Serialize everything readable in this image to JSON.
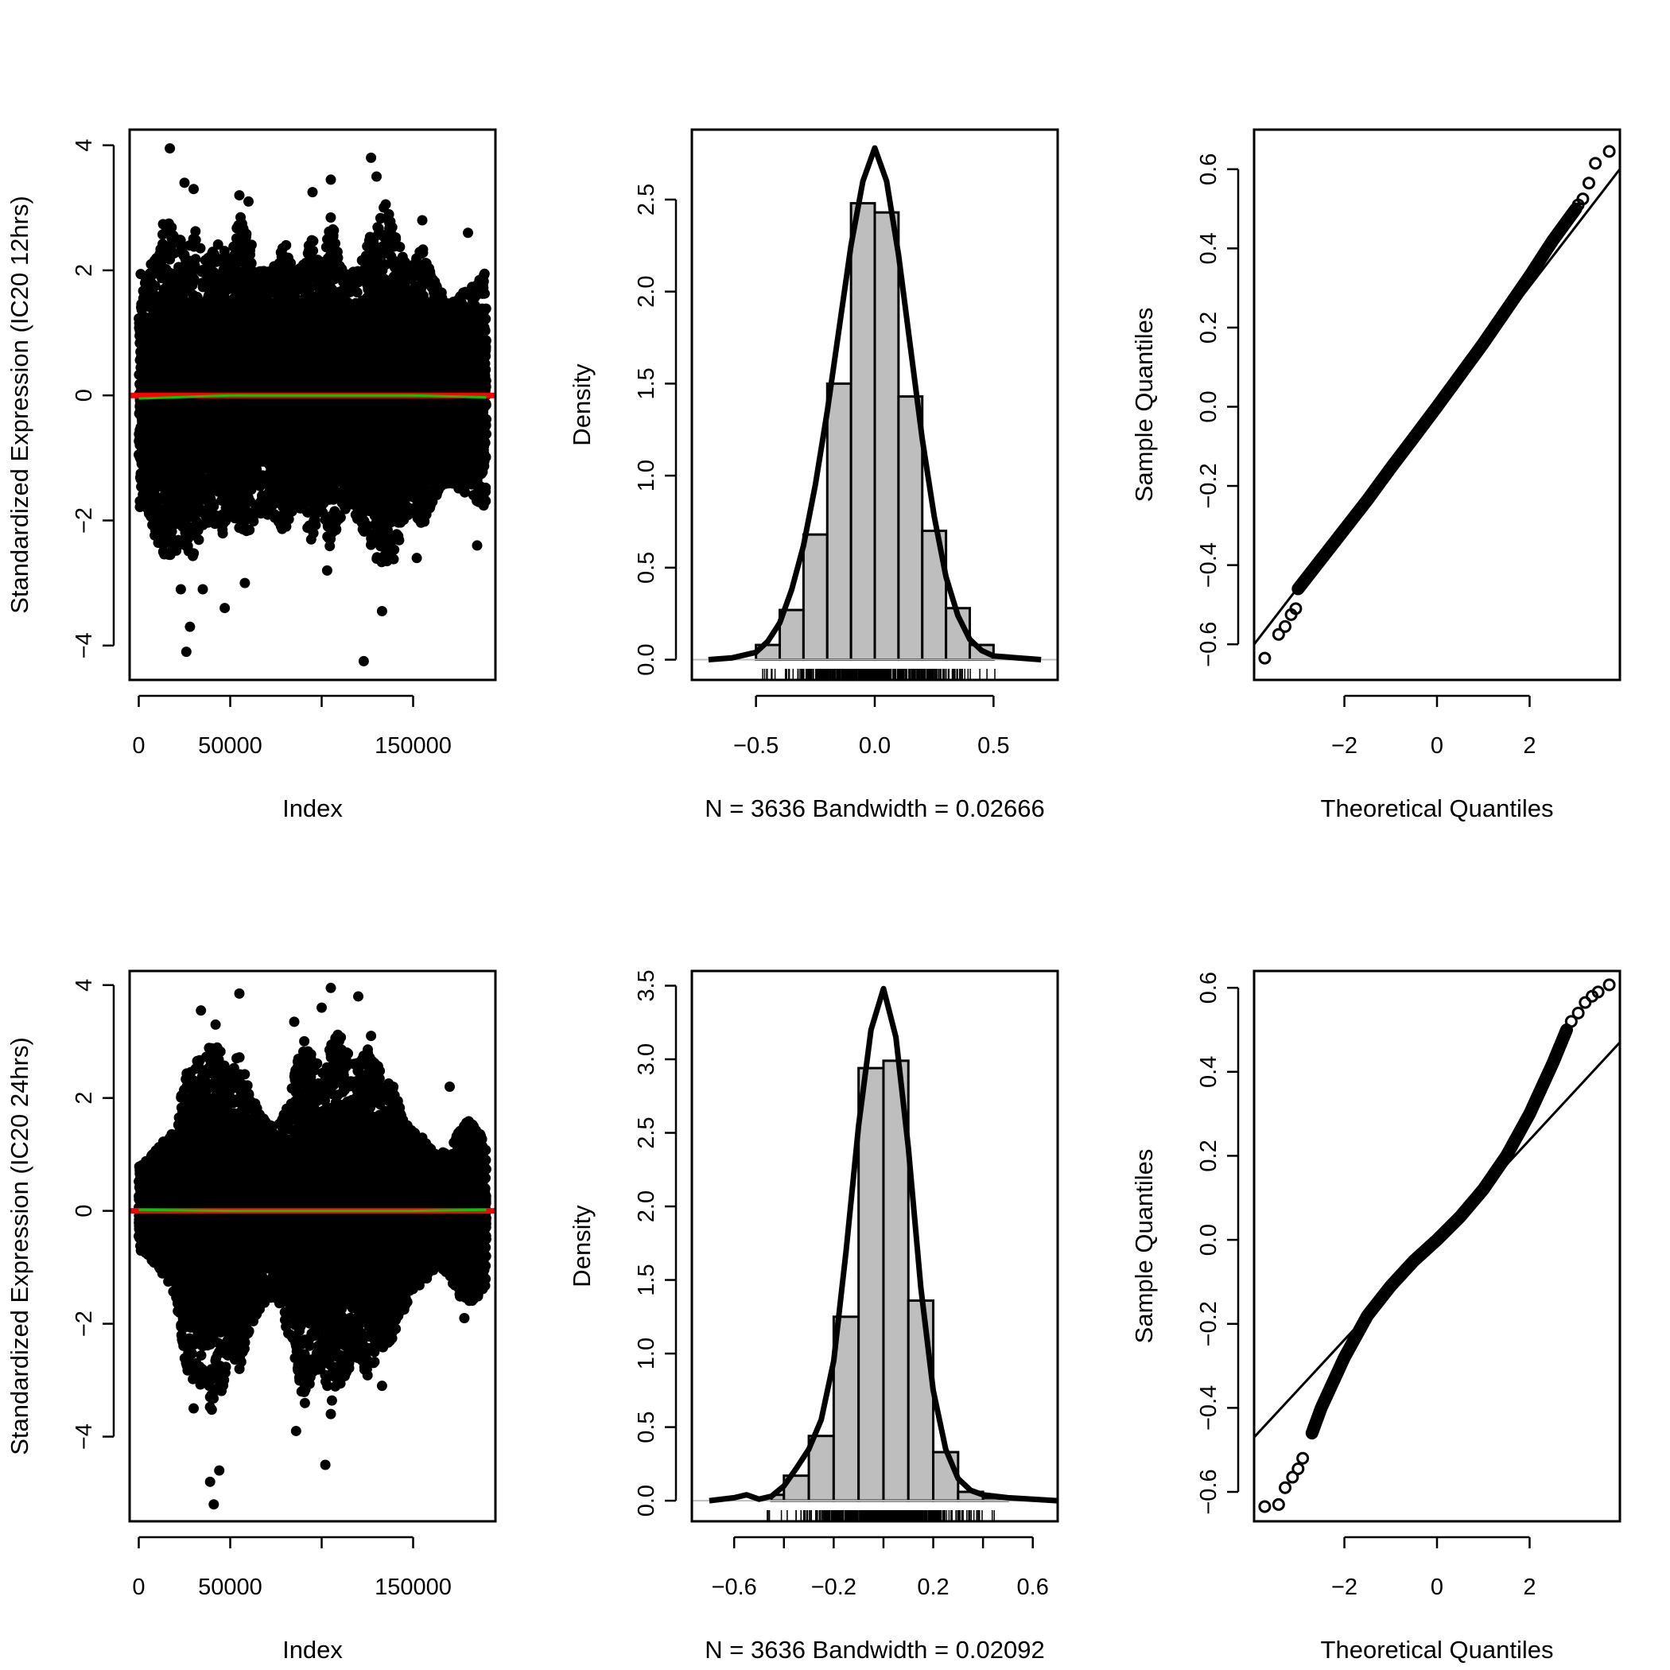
{
  "chart_data": [
    {
      "type": "scatter",
      "panel": "index-plot-12hrs",
      "title": "",
      "xlabel": "Index",
      "ylabel": "Standardized Expression (IC20 12hrs)",
      "xlim": [
        -5000,
        195000
      ],
      "ylim": [
        -4.55,
        4.25
      ],
      "x_ticks": [
        {
          "value": 0,
          "label": "0"
        },
        {
          "value": 50000,
          "label": "50000"
        },
        {
          "value": 100000,
          "label": ""
        },
        {
          "value": 150000,
          "label": "150000"
        }
      ],
      "y_ticks": [
        {
          "value": -4,
          "label": "−4"
        },
        {
          "value": -2,
          "label": "−2"
        },
        {
          "value": 0,
          "label": "0"
        },
        {
          "value": 2,
          "label": "2"
        },
        {
          "value": 4,
          "label": "4"
        }
      ],
      "n_points": 190000,
      "point_color": "#000000",
      "envelope": {
        "x": [
          0,
          5000,
          10000,
          15000,
          20000,
          25000,
          30000,
          35000,
          40000,
          45000,
          50000,
          55000,
          60000,
          65000,
          70000,
          75000,
          80000,
          85000,
          90000,
          95000,
          100000,
          105000,
          110000,
          115000,
          120000,
          125000,
          130000,
          135000,
          140000,
          145000,
          150000,
          155000,
          160000,
          165000,
          170000,
          175000,
          180000,
          185000,
          190000
        ],
        "upper": [
          2.0,
          1.9,
          2.5,
          2.9,
          2.6,
          2.4,
          2.8,
          2.2,
          2.3,
          2.6,
          2.1,
          2.9,
          2.7,
          2.0,
          2.0,
          2.1,
          2.5,
          2.0,
          2.1,
          2.6,
          2.0,
          2.9,
          2.2,
          2.0,
          2.1,
          2.4,
          2.9,
          3.1,
          2.6,
          2.2,
          2.1,
          2.4,
          2.0,
          1.7,
          1.5,
          1.6,
          1.7,
          1.8,
          2.0
        ],
        "lower": [
          -1.8,
          -1.9,
          -2.4,
          -2.6,
          -2.5,
          -2.4,
          -2.6,
          -2.1,
          -2.0,
          -2.3,
          -1.9,
          -2.2,
          -2.2,
          -1.9,
          -1.9,
          -2.0,
          -2.2,
          -1.8,
          -1.9,
          -2.4,
          -1.8,
          -2.6,
          -2.0,
          -1.8,
          -2.0,
          -2.3,
          -2.7,
          -2.8,
          -2.6,
          -2.0,
          -1.9,
          -2.1,
          -1.8,
          -1.5,
          -1.4,
          -1.5,
          -1.6,
          -1.7,
          -1.8
        ]
      },
      "outliers": [
        {
          "x": 17000,
          "y": 3.95
        },
        {
          "x": 25000,
          "y": 3.4
        },
        {
          "x": 30000,
          "y": 3.3
        },
        {
          "x": 55000,
          "y": 3.2
        },
        {
          "x": 60000,
          "y": 3.1
        },
        {
          "x": 95000,
          "y": 3.25
        },
        {
          "x": 105000,
          "y": 3.45
        },
        {
          "x": 127000,
          "y": 3.8
        },
        {
          "x": 130000,
          "y": 3.5
        },
        {
          "x": 155000,
          "y": 2.8
        },
        {
          "x": 180000,
          "y": 2.6
        },
        {
          "x": 26000,
          "y": -4.1
        },
        {
          "x": 28000,
          "y": -3.7
        },
        {
          "x": 23000,
          "y": -3.1
        },
        {
          "x": 35000,
          "y": -3.1
        },
        {
          "x": 47000,
          "y": -3.4
        },
        {
          "x": 58000,
          "y": -3.0
        },
        {
          "x": 103000,
          "y": -2.8
        },
        {
          "x": 123000,
          "y": -4.25
        },
        {
          "x": 133000,
          "y": -3.45
        },
        {
          "x": 152000,
          "y": -2.6
        },
        {
          "x": 185000,
          "y": -2.4
        }
      ],
      "reference_line": {
        "y": 0,
        "color": "#ff0000"
      },
      "smooth_line": {
        "color": "#00cc00",
        "x": [
          0,
          50000,
          100000,
          150000,
          190000
        ],
        "y": [
          -0.05,
          0.0,
          0.0,
          0.0,
          -0.03
        ]
      }
    },
    {
      "type": "histogram",
      "panel": "density-plot-12hrs",
      "title": "",
      "xlabel": "N = 3636   Bandwidth = 0.02666",
      "ylabel": "Density",
      "xlim": [
        -0.77,
        0.77
      ],
      "ylim": [
        -0.11,
        2.88
      ],
      "x_ticks": [
        {
          "value": -0.5,
          "label": "−0.5"
        },
        {
          "value": 0,
          "label": "0.0"
        },
        {
          "value": 0.5,
          "label": "0.5"
        }
      ],
      "y_ticks": [
        {
          "value": 0,
          "label": "0.0"
        },
        {
          "value": 0.5,
          "label": "0.5"
        },
        {
          "value": 1.0,
          "label": "1.0"
        },
        {
          "value": 1.5,
          "label": "1.5"
        },
        {
          "value": 2.0,
          "label": "2.0"
        },
        {
          "value": 2.5,
          "label": "2.5"
        }
      ],
      "bin_edges": [
        -0.5,
        -0.4,
        -0.3,
        -0.2,
        -0.1,
        0.0,
        0.1,
        0.2,
        0.3,
        0.4,
        0.5
      ],
      "values": [
        0.08,
        0.27,
        0.68,
        1.5,
        2.48,
        2.43,
        1.43,
        0.7,
        0.28,
        0.08
      ],
      "bar_color": "#bebebe",
      "density_curve": {
        "x": [
          -0.7,
          -0.6,
          -0.5,
          -0.45,
          -0.4,
          -0.35,
          -0.3,
          -0.25,
          -0.2,
          -0.15,
          -0.1,
          -0.05,
          0.0,
          0.05,
          0.1,
          0.15,
          0.2,
          0.25,
          0.3,
          0.35,
          0.4,
          0.45,
          0.5,
          0.6,
          0.7
        ],
        "y": [
          0.0,
          0.01,
          0.04,
          0.1,
          0.2,
          0.38,
          0.62,
          0.95,
          1.35,
          1.8,
          2.25,
          2.6,
          2.78,
          2.6,
          2.2,
          1.7,
          1.2,
          0.78,
          0.45,
          0.24,
          0.11,
          0.05,
          0.02,
          0.01,
          0.0
        ]
      },
      "rug_range": [
        -0.62,
        0.6
      ]
    },
    {
      "type": "scatter",
      "panel": "qq-plot-12hrs",
      "title": "",
      "xlabel": "Theoretical Quantiles",
      "ylabel": "Sample Quantiles",
      "xlim": [
        -3.95,
        3.95
      ],
      "ylim": [
        -0.69,
        0.7
      ],
      "x_ticks": [
        {
          "value": -2,
          "label": "−2"
        },
        {
          "value": 0,
          "label": "0"
        },
        {
          "value": 2,
          "label": "2"
        }
      ],
      "y_ticks": [
        {
          "value": -0.6,
          "label": "−0.6"
        },
        {
          "value": -0.4,
          "label": "−0.4"
        },
        {
          "value": -0.2,
          "label": "−0.2"
        },
        {
          "value": 0,
          "label": "0.0"
        },
        {
          "value": 0.2,
          "label": "0.2"
        },
        {
          "value": 0.4,
          "label": "0.4"
        },
        {
          "value": 0.6,
          "label": "0.6"
        }
      ],
      "qq_line": {
        "slope": 0.152,
        "intercept": 0.0
      },
      "qq_curve": {
        "x": [
          -3.0,
          -2.5,
          -2.0,
          -1.5,
          -1.0,
          -0.5,
          0.0,
          0.5,
          1.0,
          1.5,
          2.0,
          2.5,
          3.0
        ],
        "y": [
          -0.46,
          -0.385,
          -0.31,
          -0.235,
          -0.155,
          -0.078,
          0.0,
          0.08,
          0.16,
          0.245,
          0.33,
          0.42,
          0.5
        ]
      },
      "qq_extremes": [
        {
          "x": -3.72,
          "y": -0.635
        },
        {
          "x": -3.42,
          "y": -0.575
        },
        {
          "x": -3.28,
          "y": -0.555
        },
        {
          "x": -3.15,
          "y": -0.525
        },
        {
          "x": -3.05,
          "y": -0.51
        },
        {
          "x": 3.05,
          "y": 0.51
        },
        {
          "x": 3.15,
          "y": 0.525
        },
        {
          "x": 3.28,
          "y": 0.565
        },
        {
          "x": 3.42,
          "y": 0.615
        },
        {
          "x": 3.72,
          "y": 0.645
        }
      ]
    },
    {
      "type": "scatter",
      "panel": "index-plot-24hrs",
      "title": "",
      "xlabel": "Index",
      "ylabel": "Standardized Expression (IC20 24hrs)",
      "xlim": [
        -5000,
        195000
      ],
      "ylim": [
        -5.5,
        4.25
      ],
      "x_ticks": [
        {
          "value": 0,
          "label": "0"
        },
        {
          "value": 50000,
          "label": "50000"
        },
        {
          "value": 100000,
          "label": ""
        },
        {
          "value": 150000,
          "label": "150000"
        }
      ],
      "y_ticks": [
        {
          "value": -4,
          "label": "−4"
        },
        {
          "value": -2,
          "label": "−2"
        },
        {
          "value": 0,
          "label": "0"
        },
        {
          "value": 2,
          "label": "2"
        },
        {
          "value": 4,
          "label": "4"
        }
      ],
      "n_points": 190000,
      "point_color": "#000000",
      "envelope": {
        "x": [
          0,
          5000,
          10000,
          15000,
          20000,
          25000,
          30000,
          35000,
          40000,
          45000,
          50000,
          55000,
          60000,
          65000,
          70000,
          75000,
          80000,
          85000,
          90000,
          95000,
          100000,
          105000,
          110000,
          115000,
          120000,
          125000,
          130000,
          135000,
          140000,
          145000,
          150000,
          155000,
          160000,
          165000,
          170000,
          175000,
          180000,
          185000,
          190000
        ],
        "upper": [
          0.9,
          0.9,
          1.1,
          1.3,
          1.4,
          2.4,
          2.6,
          2.8,
          3.0,
          2.9,
          2.4,
          2.9,
          2.2,
          1.8,
          1.6,
          1.5,
          1.8,
          2.4,
          3.1,
          2.8,
          2.5,
          3.0,
          3.2,
          2.8,
          2.6,
          3.0,
          2.6,
          2.4,
          2.2,
          1.6,
          1.4,
          1.3,
          1.1,
          1.0,
          1.2,
          1.4,
          1.6,
          1.5,
          1.2
        ],
        "lower": [
          -0.7,
          -0.8,
          -1.0,
          -1.2,
          -1.5,
          -2.8,
          -3.0,
          -3.2,
          -3.6,
          -3.4,
          -2.5,
          -2.9,
          -2.2,
          -1.8,
          -1.6,
          -1.6,
          -2.0,
          -2.6,
          -3.6,
          -3.0,
          -2.8,
          -3.4,
          -3.2,
          -2.8,
          -2.6,
          -3.0,
          -2.6,
          -2.4,
          -2.2,
          -1.8,
          -1.4,
          -1.3,
          -1.1,
          -1.0,
          -1.2,
          -1.5,
          -1.7,
          -1.6,
          -1.3
        ]
      },
      "outliers": [
        {
          "x": 34000,
          "y": 3.55
        },
        {
          "x": 42000,
          "y": 3.3
        },
        {
          "x": 55000,
          "y": 3.85
        },
        {
          "x": 85000,
          "y": 3.35
        },
        {
          "x": 100000,
          "y": 3.6
        },
        {
          "x": 105000,
          "y": 3.95
        },
        {
          "x": 120000,
          "y": 3.8
        },
        {
          "x": 127000,
          "y": 3.1
        },
        {
          "x": 170000,
          "y": 2.2
        },
        {
          "x": 39000,
          "y": -4.8
        },
        {
          "x": 41000,
          "y": -5.2
        },
        {
          "x": 44000,
          "y": -4.6
        },
        {
          "x": 30000,
          "y": -3.5
        },
        {
          "x": 86000,
          "y": -3.9
        },
        {
          "x": 102000,
          "y": -4.5
        },
        {
          "x": 105000,
          "y": -3.6
        },
        {
          "x": 133000,
          "y": -3.1
        },
        {
          "x": 178000,
          "y": -1.9
        }
      ],
      "reference_line": {
        "y": 0,
        "color": "#ff0000"
      },
      "smooth_line": {
        "color": "#00cc00",
        "x": [
          0,
          50000,
          100000,
          150000,
          190000
        ],
        "y": [
          0.02,
          0.0,
          0.0,
          0.0,
          0.02
        ]
      }
    },
    {
      "type": "histogram",
      "panel": "density-plot-24hrs",
      "title": "",
      "xlabel": "N = 3636   Bandwidth = 0.02092",
      "ylabel": "Density",
      "xlim": [
        -0.77,
        0.7
      ],
      "ylim": [
        -0.14,
        3.6
      ],
      "x_ticks": [
        {
          "value": -0.6,
          "label": "−0.6"
        },
        {
          "value": -0.4,
          "label": ""
        },
        {
          "value": -0.2,
          "label": "−0.2"
        },
        {
          "value": 0,
          "label": ""
        },
        {
          "value": 0.2,
          "label": "0.2"
        },
        {
          "value": 0.4,
          "label": ""
        },
        {
          "value": 0.6,
          "label": "0.6"
        }
      ],
      "y_ticks": [
        {
          "value": 0,
          "label": "0.0"
        },
        {
          "value": 0.5,
          "label": "0.5"
        },
        {
          "value": 1.0,
          "label": "1.0"
        },
        {
          "value": 1.5,
          "label": "1.5"
        },
        {
          "value": 2.0,
          "label": "2.0"
        },
        {
          "value": 2.5,
          "label": "2.5"
        },
        {
          "value": 3.0,
          "label": "3.0"
        },
        {
          "value": 3.5,
          "label": "3.5"
        }
      ],
      "bin_edges": [
        -0.45,
        -0.4,
        -0.3,
        -0.2,
        -0.1,
        0.0,
        0.1,
        0.2,
        0.3,
        0.4,
        0.5
      ],
      "values": [
        0.04,
        0.17,
        0.44,
        1.25,
        2.94,
        2.99,
        1.36,
        0.33,
        0.06,
        0.02
      ],
      "bar_color": "#bebebe",
      "density_curve": {
        "x": [
          -0.7,
          -0.6,
          -0.55,
          -0.5,
          -0.45,
          -0.4,
          -0.35,
          -0.3,
          -0.25,
          -0.2,
          -0.15,
          -0.1,
          -0.05,
          0.0,
          0.05,
          0.1,
          0.15,
          0.2,
          0.25,
          0.3,
          0.35,
          0.4,
          0.5,
          0.6,
          0.7
        ],
        "y": [
          0.0,
          0.02,
          0.04,
          0.01,
          0.03,
          0.1,
          0.22,
          0.35,
          0.55,
          0.95,
          1.7,
          2.55,
          3.2,
          3.48,
          3.15,
          2.4,
          1.45,
          0.75,
          0.35,
          0.15,
          0.07,
          0.04,
          0.02,
          0.01,
          0.0
        ]
      },
      "rug_range": [
        -0.65,
        0.6
      ]
    },
    {
      "type": "scatter",
      "panel": "qq-plot-24hrs",
      "title": "",
      "xlabel": "Theoretical Quantiles",
      "ylabel": "Sample Quantiles",
      "xlim": [
        -3.95,
        3.95
      ],
      "ylim": [
        -0.67,
        0.64
      ],
      "x_ticks": [
        {
          "value": -2,
          "label": "−2"
        },
        {
          "value": 0,
          "label": "0"
        },
        {
          "value": 2,
          "label": "2"
        }
      ],
      "y_ticks": [
        {
          "value": -0.6,
          "label": "−0.6"
        },
        {
          "value": -0.4,
          "label": "−0.4"
        },
        {
          "value": -0.2,
          "label": "−0.2"
        },
        {
          "value": 0,
          "label": "0.0"
        },
        {
          "value": 0.2,
          "label": "0.2"
        },
        {
          "value": 0.4,
          "label": "0.4"
        },
        {
          "value": 0.6,
          "label": "0.6"
        }
      ],
      "qq_line": {
        "slope": 0.119,
        "intercept": 0.0
      },
      "qq_curve": {
        "x": [
          -2.7,
          -2.5,
          -2.0,
          -1.5,
          -1.0,
          -0.5,
          0.0,
          0.5,
          1.0,
          1.5,
          2.0,
          2.5,
          2.8
        ],
        "y": [
          -0.46,
          -0.4,
          -0.28,
          -0.18,
          -0.11,
          -0.05,
          0.0,
          0.055,
          0.12,
          0.2,
          0.3,
          0.42,
          0.5
        ]
      },
      "qq_extremes": [
        {
          "x": -3.72,
          "y": -0.635
        },
        {
          "x": -3.42,
          "y": -0.63
        },
        {
          "x": -3.28,
          "y": -0.59
        },
        {
          "x": -3.12,
          "y": -0.565
        },
        {
          "x": -3.0,
          "y": -0.545
        },
        {
          "x": -2.9,
          "y": -0.52
        },
        {
          "x": 2.9,
          "y": 0.52
        },
        {
          "x": 3.05,
          "y": 0.54
        },
        {
          "x": 3.2,
          "y": 0.565
        },
        {
          "x": 3.35,
          "y": 0.58
        },
        {
          "x": 3.48,
          "y": 0.59
        },
        {
          "x": 3.72,
          "y": 0.607
        }
      ]
    }
  ]
}
